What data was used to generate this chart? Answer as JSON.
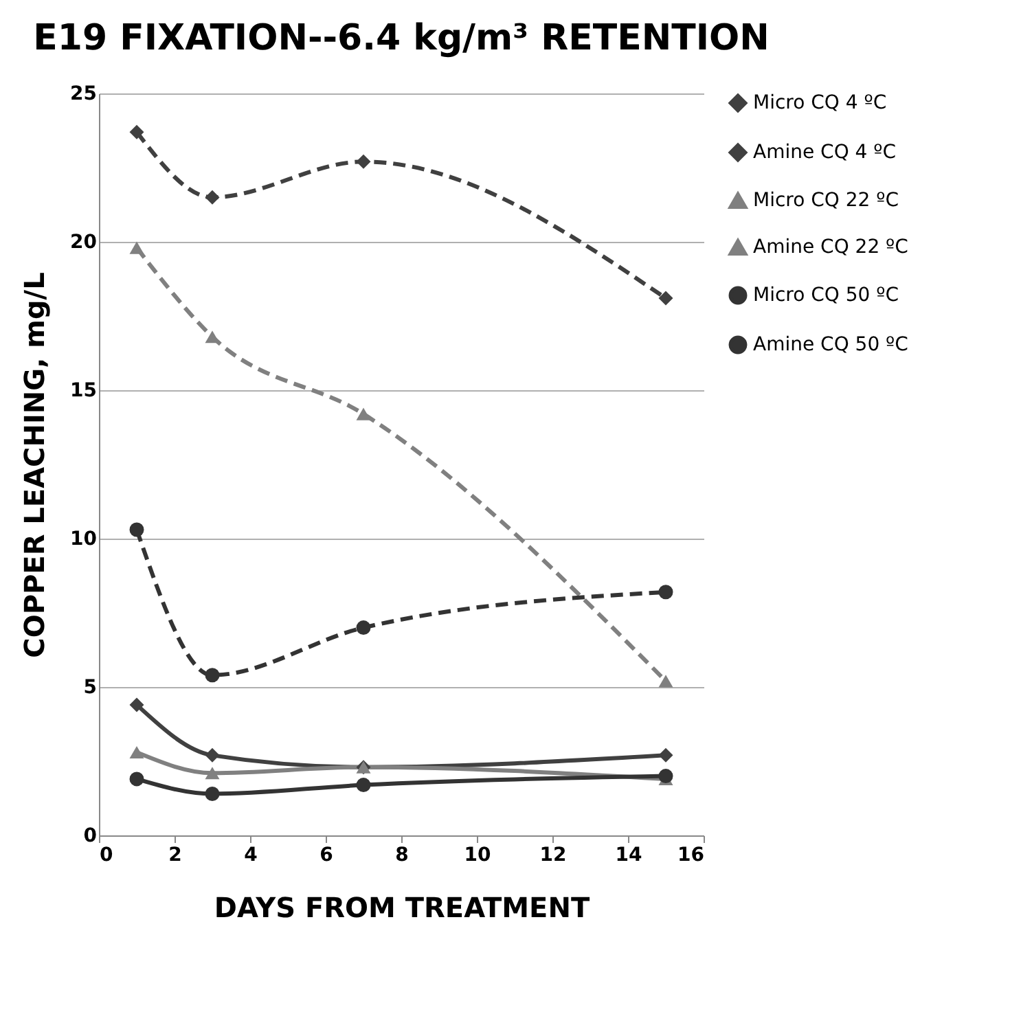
{
  "chart_data": {
    "type": "line",
    "title": "E19 FIXATION--6.4 kg/m³ RETENTION",
    "xlabel": "DAYS FROM TREATMENT",
    "ylabel": "COPPER LEACHING, mg/L",
    "x": [
      1,
      3,
      7,
      15
    ],
    "series": [
      {
        "name": "Micro CQ 4 ºC",
        "color": "#404040",
        "marker": "diamond",
        "line_style": "solid",
        "values": [
          4.4,
          2.7,
          2.3,
          2.7
        ]
      },
      {
        "name": "Amine CQ 4 ºC",
        "color": "#404040",
        "marker": "diamond",
        "line_style": "dashed",
        "values": [
          23.7,
          21.5,
          22.7,
          18.1
        ]
      },
      {
        "name": "Micro CQ 22 ºC",
        "color": "#808080",
        "marker": "triangle",
        "line_style": "solid",
        "values": [
          2.8,
          2.1,
          2.3,
          1.9
        ]
      },
      {
        "name": "Amine CQ 22 ºC",
        "color": "#808080",
        "marker": "triangle",
        "line_style": "dashed",
        "values": [
          19.8,
          16.8,
          14.2,
          5.2
        ]
      },
      {
        "name": "Micro CQ 50 ºC",
        "color": "#333333",
        "marker": "circle",
        "line_style": "solid",
        "values": [
          1.9,
          1.4,
          1.7,
          2.0
        ]
      },
      {
        "name": "Amine CQ 50 ºC",
        "color": "#333333",
        "marker": "circle",
        "line_style": "dashed",
        "values": [
          10.3,
          5.4,
          7.0,
          8.2
        ]
      }
    ],
    "xlim": [
      0,
      16
    ],
    "xticks": [
      0,
      2,
      4,
      6,
      8,
      10,
      12,
      14,
      16
    ],
    "ylim": [
      0,
      25
    ],
    "yticks": [
      0,
      5,
      10,
      15,
      20,
      25
    ],
    "grid": "y",
    "legend": "right"
  }
}
